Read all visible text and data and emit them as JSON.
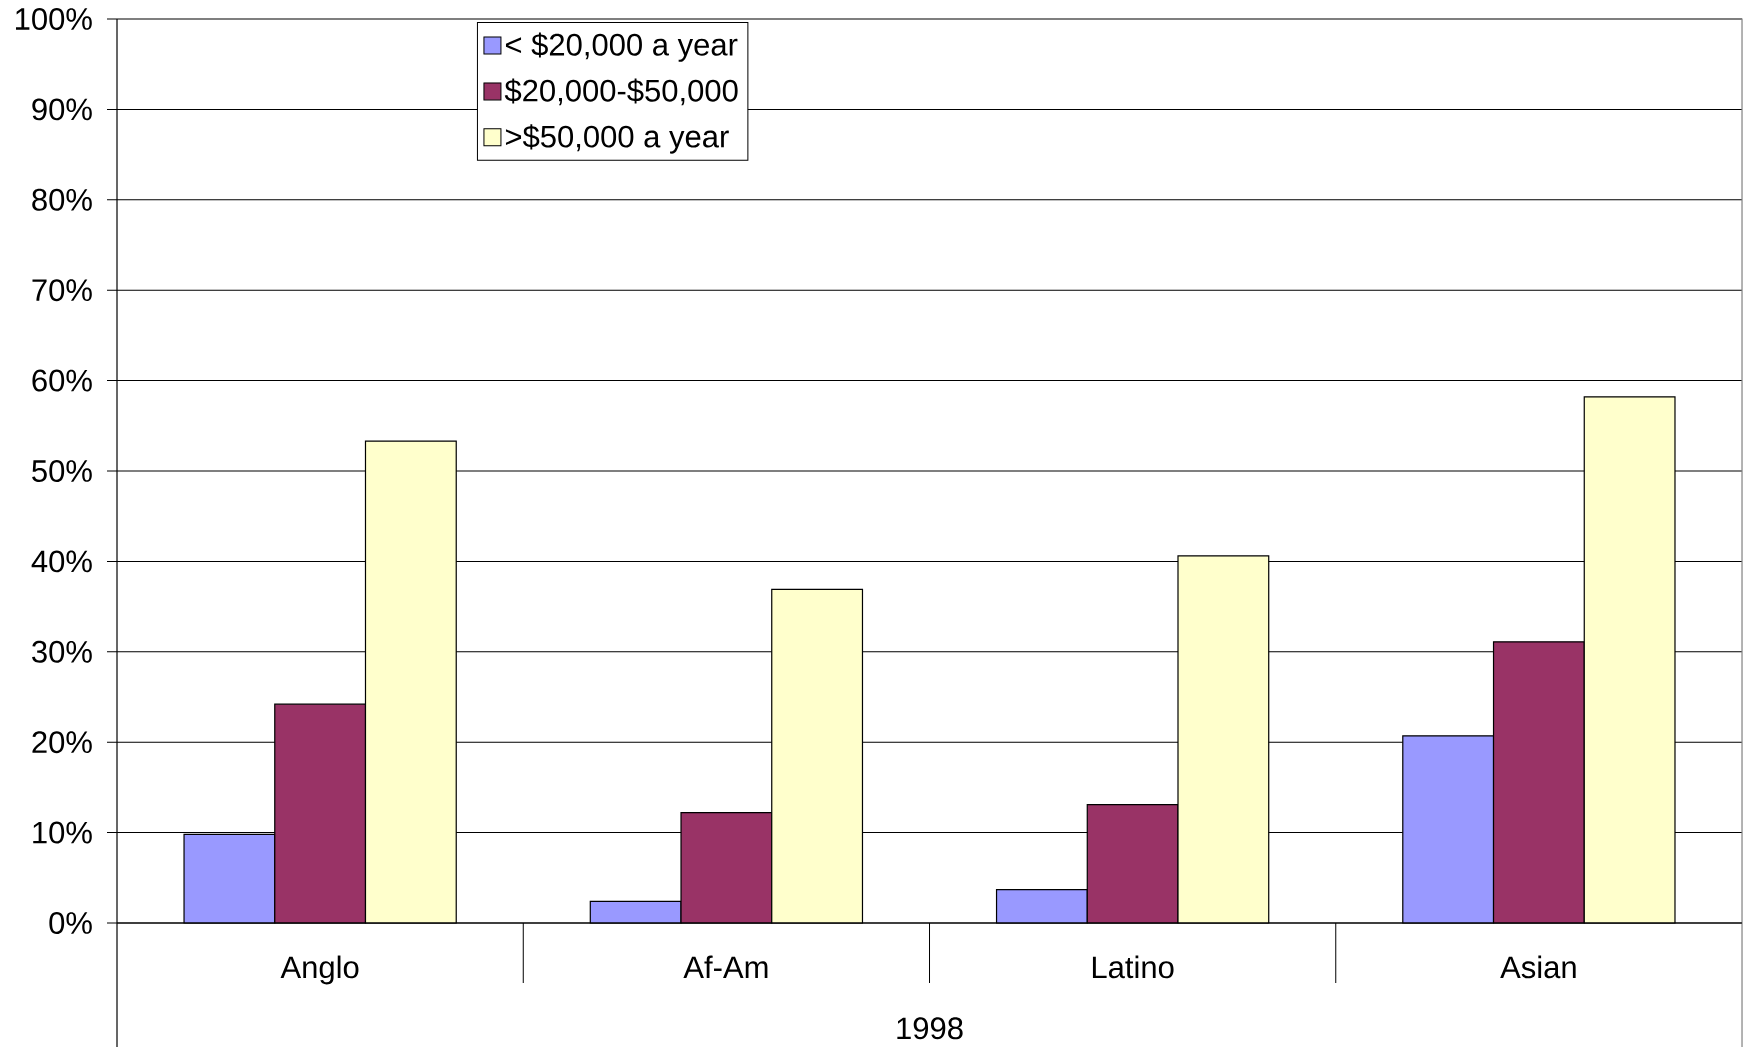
{
  "chart_data": {
    "type": "bar",
    "xlabel": "1998",
    "categories": [
      "Anglo",
      "Af-Am",
      "Latino",
      "Asian"
    ],
    "series": [
      {
        "name": "< $20,000 a year",
        "color": "#9999ff",
        "values": [
          9.8,
          2.4,
          3.7,
          20.7
        ]
      },
      {
        "name": "$20,000-$50,000",
        "color": "#993366",
        "values": [
          24.2,
          12.2,
          13.1,
          31.1
        ]
      },
      {
        "name": ">$50,000 a year",
        "color": "#ffffcc",
        "values": [
          53.3,
          36.9,
          40.6,
          58.2
        ]
      }
    ],
    "ylim": [
      0,
      100
    ],
    "yticks": [
      {
        "value": 0,
        "label": "0%"
      },
      {
        "value": 10,
        "label": "10%"
      },
      {
        "value": 20,
        "label": "20%"
      },
      {
        "value": 30,
        "label": "30%"
      },
      {
        "value": 40,
        "label": "40%"
      },
      {
        "value": 50,
        "label": "50%"
      },
      {
        "value": 60,
        "label": "60%"
      },
      {
        "value": 70,
        "label": "70%"
      },
      {
        "value": 80,
        "label": "80%"
      },
      {
        "value": 90,
        "label": "90%"
      },
      {
        "value": 100,
        "label": "100%"
      }
    ],
    "grid": "y",
    "legend": "top left"
  }
}
